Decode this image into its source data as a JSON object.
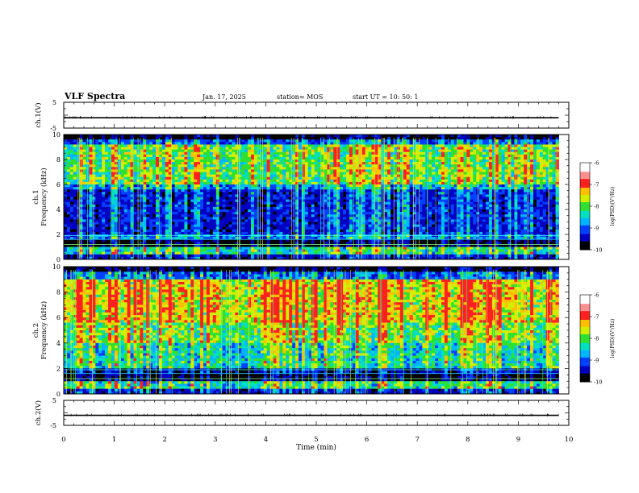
{
  "header": {
    "title": "VLF Spectra",
    "date": "Jan. 17, 2025",
    "station": "station= MOS",
    "start_ut": "start UT =  10: 50: 1"
  },
  "chart_data": [
    {
      "type": "line",
      "panel": "ch.1 waveform",
      "ylabel": "ch.1(V)",
      "ylim": [
        -5,
        5
      ],
      "yticks": [
        "5",
        "-5"
      ],
      "xlim": [
        0,
        10
      ],
      "series": [
        {
          "values_note": "flat",
          "x": [
            0,
            9.8
          ],
          "y": [
            -1,
            -1
          ]
        }
      ]
    },
    {
      "type": "heatmap",
      "panel": "ch.1 spectrogram",
      "ylabel": "ch.1",
      "ylabel2": "Frequency (kHz)",
      "ylim": [
        0,
        10
      ],
      "yticks": [
        "0",
        "2",
        "4",
        "6",
        "8",
        "10"
      ],
      "xlim": [
        0,
        10
      ],
      "colorbar": {
        "label": "log(PSD)(V²/Hz)",
        "range": [
          -10,
          -6
        ],
        "ticks": [
          "-6",
          "-7",
          "-8",
          "-9",
          "-10"
        ]
      }
    },
    {
      "type": "heatmap",
      "panel": "ch.2 spectrogram",
      "ylabel": "ch.2",
      "ylabel2": "Frequency (kHz)",
      "ylim": [
        0,
        10
      ],
      "yticks": [
        "0",
        "2",
        "4",
        "6",
        "8",
        "10"
      ],
      "xlim": [
        0,
        10
      ],
      "colorbar": {
        "label": "log(PSD)(V²/Hz)",
        "range": [
          -10,
          -6
        ],
        "ticks": [
          "-6",
          "-7",
          "-8",
          "-9",
          "-10"
        ]
      }
    },
    {
      "type": "line",
      "panel": "ch.2 waveform",
      "ylabel": "ch.2(V)",
      "ylim": [
        -5,
        5
      ],
      "yticks": [
        "5",
        "-5"
      ],
      "xlim": [
        0,
        10
      ],
      "series": [
        {
          "values_note": "flat",
          "x": [
            0,
            9.8
          ],
          "y": [
            -1,
            -1
          ]
        }
      ]
    }
  ],
  "xaxis": {
    "label": "Time (min)",
    "ticks": [
      "0",
      "1",
      "2",
      "3",
      "4",
      "5",
      "6",
      "7",
      "8",
      "9",
      "10"
    ]
  },
  "colors": {
    "bg": "#000000",
    "blue": "#0000b4",
    "cyan": "#00c8ff",
    "green": "#20e030",
    "yellow": "#f0e000",
    "red": "#ff2020"
  }
}
